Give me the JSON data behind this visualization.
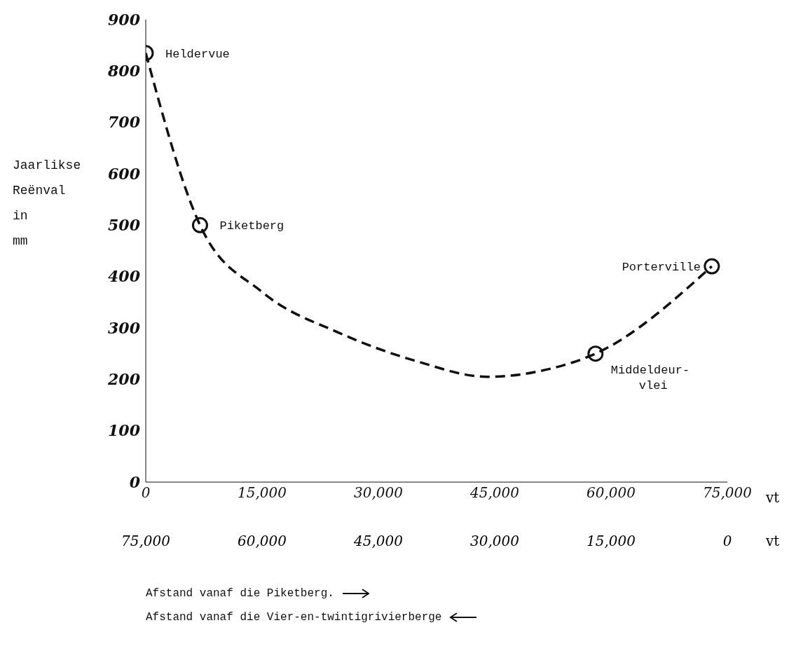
{
  "chart_data": {
    "type": "scatter",
    "ylabel": "Jaarlikse\nReënval\nin\nmm",
    "xlabel": "Afstand vanaf die Piketberg.",
    "x2label": "Afstand vanaf die Vier-en-twintigrivierberge",
    "xlim": [
      0,
      75000
    ],
    "xticks": [
      0,
      {
        "value": 15000,
        "label": "15,000"
      },
      {
        "value": 30000,
        "label": "30,000"
      },
      {
        "value": 45000,
        "label": "45,000"
      },
      {
        "value": 60000,
        "label": "60,000"
      },
      {
        "value": 75000,
        "label": "75,000"
      }
    ],
    "x2lim": [
      75000,
      0
    ],
    "x2ticks": [
      {
        "value": 75000,
        "label": "75,000"
      },
      {
        "value": 60000,
        "label": "60,000"
      },
      {
        "value": 45000,
        "label": "45,000"
      },
      {
        "value": 30000,
        "label": "30,000"
      },
      {
        "value": 15000,
        "label": "15,000"
      },
      0
    ],
    "ylim": [
      0,
      900
    ],
    "yticks": [
      0,
      100,
      200,
      300,
      400,
      500,
      600,
      700,
      800,
      900
    ],
    "series": [
      {
        "color": "#111111",
        "x": [
          0,
          7000,
          58000,
          73000
        ],
        "values": [
          835,
          500,
          250,
          420
        ],
        "marker": "circle"
      },
      {
        "type": "line",
        "color": "#111111",
        "x": [
          0,
          7000,
          15000,
          25000,
          35000,
          44000,
          52000,
          58000,
          73000
        ],
        "values": [
          835,
          500,
          370,
          290,
          235,
          205,
          220,
          250,
          420
        ],
        "line_style": "dashed",
        "marker": "none"
      }
    ],
    "annotations": [
      {
        "text": "Heldervue",
        "x": 0,
        "y": 835
      },
      {
        "text": "Piketberg",
        "x": 7000,
        "y": 500
      },
      {
        "text": "Middeldeur-\nvlei",
        "x": 58000,
        "y": 250
      },
      {
        "text": "Porterville",
        "x": 73000,
        "y": 420
      },
      "vt",
      "vt"
    ]
  }
}
